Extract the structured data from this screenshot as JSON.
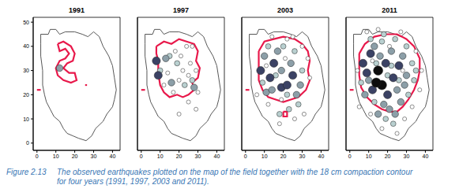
{
  "chart_data": [
    {
      "type": "scatter",
      "title": "1991",
      "xlim": [
        -2,
        44
      ],
      "ylim": [
        -3,
        52
      ],
      "xticks": [
        0,
        10,
        20,
        30,
        40
      ],
      "yticks": [
        0,
        10,
        20,
        30,
        40,
        50
      ],
      "series": [
        {
          "type": "line",
          "color": "#444444",
          "x": [
            2,
            6,
            7,
            10,
            12,
            15,
            20,
            24,
            27,
            30,
            33,
            35,
            38,
            40,
            41,
            42,
            41,
            40,
            37,
            35,
            31,
            29,
            26,
            22,
            19,
            16,
            14,
            12,
            9,
            7,
            5,
            4,
            3,
            3,
            2,
            2,
            2
          ],
          "y": [
            45,
            45,
            47,
            47,
            45,
            46,
            46,
            45,
            44,
            46,
            44,
            40,
            36,
            32,
            27,
            22,
            18,
            15,
            12,
            9,
            6,
            3,
            1,
            2,
            3,
            4,
            6,
            9,
            11,
            14,
            17,
            20,
            24,
            30,
            36,
            41,
            45
          ]
        },
        {
          "type": "line",
          "color": "#e8194b",
          "x": [
            11,
            14,
            18,
            20,
            19,
            16,
            14,
            17,
            20,
            21,
            18,
            14,
            11,
            10,
            12,
            15,
            17,
            15,
            12,
            11,
            null,
            25.5,
            26.5,
            null,
            0,
            2
          ],
          "y": [
            41,
            42,
            40,
            37,
            34,
            33,
            31,
            29,
            29,
            26,
            25,
            26,
            28,
            31,
            34,
            35,
            37,
            39,
            38,
            41,
            null,
            24,
            24,
            null,
            22,
            22
          ]
        },
        {
          "type": "scatter",
          "color": "#8c9fa8",
          "x": [
            12
          ],
          "y": [
            31
          ],
          "magnitudes": [
            2.5
          ]
        }
      ]
    },
    {
      "type": "scatter",
      "title": "1997",
      "xlim": [
        -2,
        44
      ],
      "ylim": [
        -3,
        52
      ],
      "xticks": [
        0,
        10,
        20,
        30,
        40
      ],
      "yticks": [
        0,
        10,
        20,
        30,
        40,
        50
      ],
      "tick_labels": "x",
      "series": [
        {
          "type": "line",
          "color": "#444444",
          "x": [
            2,
            6,
            7,
            10,
            12,
            15,
            20,
            24,
            27,
            30,
            33,
            35,
            38,
            40,
            41,
            42,
            41,
            40,
            37,
            35,
            31,
            29,
            26,
            22,
            19,
            16,
            14,
            12,
            9,
            7,
            5,
            4,
            3,
            3,
            2,
            2,
            2
          ],
          "y": [
            45,
            45,
            47,
            47,
            45,
            46,
            46,
            45,
            44,
            46,
            44,
            40,
            36,
            32,
            27,
            22,
            18,
            15,
            12,
            9,
            6,
            3,
            1,
            2,
            3,
            4,
            6,
            9,
            11,
            14,
            17,
            20,
            24,
            30,
            36,
            41,
            45
          ]
        },
        {
          "type": "line",
          "color": "#e8194b",
          "x": [
            8,
            12,
            16,
            20,
            24,
            28,
            30,
            29,
            31,
            30,
            27,
            28,
            25,
            22,
            19,
            15,
            12,
            10,
            9,
            9,
            8,
            8,
            null,
            0,
            2
          ],
          "y": [
            40,
            42,
            41,
            43,
            42,
            41,
            38,
            34,
            31,
            27,
            25,
            22,
            20,
            19,
            20,
            19,
            21,
            24,
            29,
            34,
            37,
            40,
            null,
            22,
            22
          ]
        },
        {
          "type": "scatter",
          "color": "#ffffff",
          "x": [
            18,
            21,
            24,
            14,
            20,
            25,
            29,
            12,
            17,
            26,
            27,
            22,
            30,
            25,
            20,
            29
          ],
          "y": [
            38,
            36,
            40,
            29,
            26,
            28,
            30,
            24,
            21,
            33,
            40,
            30,
            21,
            17,
            12,
            14
          ],
          "magnitudes": [
            1.5,
            1.5,
            1.5,
            1.5,
            1.5,
            1.5,
            1.5,
            1.5,
            1.5,
            1.5,
            1.5,
            1.5,
            1.5,
            1.5,
            1.5,
            1.5
          ]
        },
        {
          "type": "scatter",
          "color": "#b9d0d0",
          "x": [
            15,
            19,
            10,
            23,
            27
          ],
          "y": [
            36,
            33,
            30,
            24,
            26
          ],
          "magnitudes": [
            2.0,
            2.0,
            2.0,
            2.0,
            2.0
          ]
        },
        {
          "type": "scatter",
          "color": "#8c9fa8",
          "x": [
            13,
            28,
            16
          ],
          "y": [
            35,
            23,
            25
          ],
          "magnitudes": [
            2.5,
            2.5,
            2.5
          ]
        },
        {
          "type": "scatter",
          "color": "#3b4264",
          "x": [
            9,
            8
          ],
          "y": [
            28,
            34
          ],
          "magnitudes": [
            3.0,
            3.0
          ]
        }
      ]
    },
    {
      "type": "scatter",
      "title": "2003",
      "xlim": [
        -2,
        44
      ],
      "ylim": [
        -3,
        52
      ],
      "xticks": [
        0,
        10,
        20,
        30,
        40
      ],
      "yticks": [
        0,
        10,
        20,
        30,
        40,
        50
      ],
      "tick_labels": "x",
      "series": [
        {
          "type": "line",
          "color": "#444444",
          "x": [
            2,
            6,
            7,
            10,
            12,
            15,
            20,
            24,
            27,
            30,
            33,
            35,
            38,
            40,
            41,
            42,
            41,
            40,
            37,
            35,
            31,
            29,
            26,
            22,
            19,
            16,
            14,
            12,
            9,
            7,
            5,
            4,
            3,
            3,
            2,
            2,
            2
          ],
          "y": [
            45,
            45,
            47,
            47,
            45,
            46,
            46,
            45,
            44,
            46,
            44,
            40,
            36,
            32,
            27,
            22,
            18,
            15,
            12,
            9,
            6,
            3,
            1,
            2,
            3,
            4,
            6,
            9,
            11,
            14,
            17,
            20,
            24,
            30,
            36,
            41,
            45
          ]
        },
        {
          "type": "line",
          "color": "#e8194b",
          "x": [
            7,
            10,
            15,
            20,
            26,
            30,
            33,
            34,
            33,
            34,
            32,
            28,
            24,
            20,
            16,
            12,
            9,
            7,
            7,
            7,
            null,
            20,
            22,
            22,
            20,
            20,
            null,
            0,
            2
          ],
          "y": [
            38,
            42,
            43,
            44,
            43,
            41,
            38,
            34,
            30,
            26,
            22,
            19,
            18,
            17,
            18,
            19,
            22,
            26,
            31,
            38,
            null,
            13,
            13,
            11,
            11,
            13,
            null,
            22,
            22
          ]
        },
        {
          "type": "scatter",
          "color": "#ffffff",
          "x": [
            14,
            22,
            30,
            25,
            33,
            6,
            12,
            18,
            26,
            31,
            34,
            19,
            21,
            11
          ],
          "y": [
            44,
            43,
            40,
            44,
            35,
            20,
            16,
            8,
            10,
            12,
            27,
            18,
            35,
            32
          ],
          "magnitudes": [
            1.5,
            1.5,
            1.5,
            1.5,
            1.5,
            1.5,
            1.5,
            1.5,
            1.5,
            1.5,
            1.5,
            1.5,
            1.5,
            1.5
          ]
        },
        {
          "type": "scatter",
          "color": "#b9d0d0",
          "x": [
            12,
            20,
            26,
            16,
            22,
            30,
            9,
            23,
            28,
            18
          ],
          "y": [
            40,
            40,
            38,
            28,
            20,
            30,
            25,
            14,
            16,
            12
          ],
          "magnitudes": [
            2.0,
            2.0,
            2.0,
            2.0,
            2.0,
            2.0,
            2.0,
            2.0,
            2.0,
            2.0
          ]
        },
        {
          "type": "scatter",
          "color": "#8c9fa8",
          "x": [
            10,
            17,
            24,
            29,
            11,
            27,
            19,
            14
          ],
          "y": [
            36,
            38,
            33,
            24,
            21,
            20,
            30,
            22
          ],
          "magnitudes": [
            2.5,
            2.5,
            2.5,
            2.5,
            2.5,
            2.5,
            2.5,
            2.5
          ]
        },
        {
          "type": "scatter",
          "color": "#3b4264",
          "x": [
            8,
            19,
            22,
            15,
            13,
            25
          ],
          "y": [
            30,
            23,
            24,
            33,
            27,
            28
          ],
          "magnitudes": [
            3.0,
            3.0,
            3.0,
            3.0,
            3.0,
            3.0
          ]
        }
      ]
    },
    {
      "type": "scatter",
      "title": "2011",
      "xlim": [
        -2,
        44
      ],
      "ylim": [
        -3,
        52
      ],
      "xticks": [
        0,
        10,
        20,
        30,
        40
      ],
      "yticks": [
        0,
        10,
        20,
        30,
        40,
        50
      ],
      "tick_labels": "x",
      "series": [
        {
          "type": "line",
          "color": "#444444",
          "x": [
            2,
            6,
            7,
            10,
            12,
            15,
            20,
            24,
            27,
            30,
            33,
            35,
            38,
            40,
            41,
            42,
            41,
            40,
            37,
            35,
            31,
            29,
            26,
            22,
            19,
            16,
            14,
            12,
            9,
            7,
            5,
            4,
            3,
            3,
            2,
            2,
            2
          ],
          "y": [
            45,
            45,
            47,
            47,
            45,
            46,
            46,
            45,
            44,
            46,
            44,
            40,
            36,
            32,
            27,
            22,
            18,
            15,
            12,
            9,
            6,
            3,
            1,
            2,
            3,
            4,
            6,
            9,
            11,
            14,
            17,
            20,
            24,
            30,
            36,
            41,
            45
          ]
        },
        {
          "type": "line",
          "color": "#e8194b",
          "x": [
            5,
            8,
            13,
            19,
            25,
            30,
            34,
            37,
            37,
            36,
            34,
            31,
            28,
            25,
            21,
            17,
            13,
            9,
            6,
            5,
            5,
            null,
            0,
            2
          ],
          "y": [
            37,
            41,
            44,
            45,
            45,
            43,
            40,
            35,
            30,
            26,
            22,
            18,
            15,
            13,
            13,
            14,
            16,
            19,
            23,
            28,
            37,
            null,
            22,
            22
          ]
        },
        {
          "type": "scatter",
          "color": "#ffffff",
          "x": [
            9,
            15,
            27,
            35,
            37,
            33,
            29,
            17,
            25,
            4,
            5,
            11,
            38,
            21,
            12,
            28
          ],
          "y": [
            46,
            47,
            46,
            38,
            22,
            15,
            10,
            6,
            4,
            30,
            15,
            12,
            30,
            40,
            34,
            30
          ],
          "magnitudes": [
            1.5,
            1.5,
            1.5,
            1.5,
            1.5,
            1.5,
            1.5,
            1.5,
            1.5,
            1.5,
            1.5,
            1.5,
            1.5,
            1.5,
            1.5,
            1.5
          ]
        },
        {
          "type": "scatter",
          "color": "#b9d0d0",
          "x": [
            11,
            17,
            24,
            30,
            33,
            20,
            26,
            14,
            19,
            23,
            13,
            31,
            34,
            6,
            35,
            22,
            18
          ],
          "y": [
            43,
            42,
            43,
            40,
            33,
            28,
            26,
            33,
            10,
            8,
            17,
            20,
            26,
            25,
            30,
            32,
            45
          ],
          "magnitudes": [
            2.0,
            2.0,
            2.0,
            2.0,
            2.0,
            2.0,
            2.0,
            2.0,
            2.0,
            2.0,
            2.0,
            2.0,
            2.0,
            2.0,
            2.0,
            2.0,
            2.0
          ]
        },
        {
          "type": "scatter",
          "color": "#8c9fa8",
          "x": [
            13,
            22,
            28,
            18,
            10,
            25,
            30,
            16,
            21,
            27,
            15,
            24,
            29,
            8
          ],
          "y": [
            40,
            38,
            36,
            16,
            26,
            22,
            28,
            36,
            14,
            17,
            12,
            12,
            24,
            20
          ],
          "magnitudes": [
            2.5,
            2.5,
            2.5,
            2.5,
            2.5,
            2.5,
            2.5,
            2.5,
            2.5,
            2.5,
            2.5,
            2.5,
            2.5,
            2.5
          ]
        },
        {
          "type": "scatter",
          "color": "#3b4264",
          "x": [
            9,
            7,
            19,
            23,
            12,
            26,
            20,
            11
          ],
          "y": [
            29,
            33,
            33,
            27,
            22,
            32,
            20,
            37
          ],
          "magnitudes": [
            3.0,
            3.0,
            3.0,
            3.0,
            3.0,
            3.0,
            3.0,
            3.0
          ]
        },
        {
          "type": "scatter",
          "color": "#0d0d0d",
          "x": [
            15,
            17,
            14
          ],
          "y": [
            30,
            24,
            25
          ],
          "magnitudes": [
            3.5,
            3.5,
            3.5
          ]
        }
      ]
    }
  ],
  "caption_label": "Figure 2.13",
  "caption": "The observed earthquakes plotted on the map of the field together with the 18 cm compaction contour for four years (1991, 1997, 2003 and 2011)."
}
